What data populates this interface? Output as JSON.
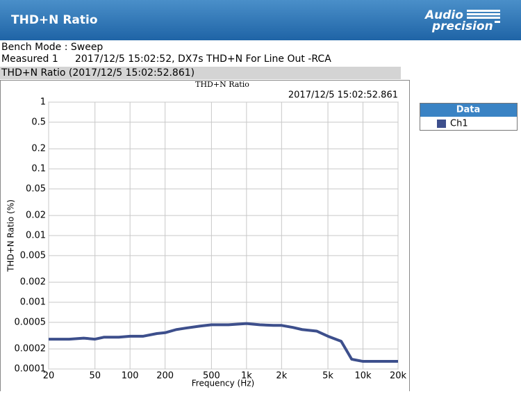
{
  "header": {
    "title": "THD+N Ratio",
    "logo": [
      "Audio",
      "precision"
    ]
  },
  "info": {
    "bench_mode": "Bench Mode : Sweep",
    "measured_label": "Measured 1",
    "measured_text": "2017/12/5 15:02:52, DX7s THD+N For Line Out -RCA",
    "graph_tab": "THD+N Ratio (2017/12/5 15:02:52.861)"
  },
  "chart_data": {
    "type": "line",
    "title": "THD+N Ratio",
    "subtitle": "2017/12/5 15:02:52.861",
    "x_label": "Frequency (Hz)",
    "y_label": "THD+N Ratio (%)",
    "x": [
      20,
      30,
      40,
      50,
      60,
      80,
      100,
      130,
      170,
      200,
      250,
      300,
      400,
      500,
      700,
      1000,
      1300,
      1700,
      2000,
      2500,
      3000,
      4000,
      5000,
      6500,
      8000,
      10000,
      13000,
      16000,
      20000
    ],
    "series": [
      {
        "name": "Ch1",
        "color": "#3d4f8c",
        "values": [
          0.00028,
          0.00028,
          0.00029,
          0.00028,
          0.0003,
          0.0003,
          0.00031,
          0.00031,
          0.00034,
          0.00035,
          0.00039,
          0.00041,
          0.00044,
          0.00046,
          0.00046,
          0.00048,
          0.00046,
          0.00045,
          0.00045,
          0.00042,
          0.00039,
          0.00037,
          0.00031,
          0.00026,
          0.00014,
          0.00013,
          0.00013,
          0.00013,
          0.00013
        ]
      }
    ],
    "xlim": [
      20,
      20000
    ],
    "ylim": [
      0.0001,
      1
    ],
    "xscale": "log",
    "yscale": "log",
    "xticks": [
      20,
      50,
      100,
      200,
      500,
      {
        "value": 1000,
        "label": "1k"
      },
      {
        "value": 2000,
        "label": "2k"
      },
      {
        "value": 5000,
        "label": "5k"
      },
      {
        "value": 10000,
        "label": "10k"
      },
      {
        "value": 20000,
        "label": "20k"
      }
    ],
    "yticks": [
      1,
      0.5,
      0.2,
      0.1,
      0.05,
      0.02,
      0.01,
      0.005,
      0.002,
      0.001,
      0.0005,
      0.0002,
      0.0001
    ],
    "grid": true,
    "legend_title": "Data",
    "legend": "right"
  }
}
